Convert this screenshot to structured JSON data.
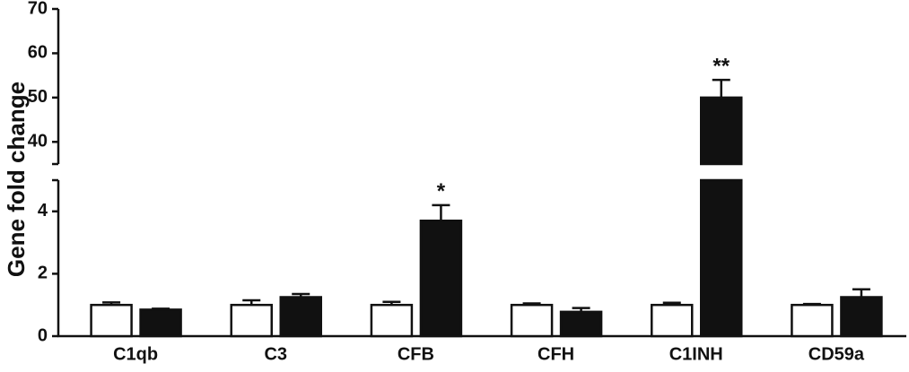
{
  "chart_data": {
    "type": "bar",
    "y_label": "Gene fold change",
    "categories": [
      "C1qb",
      "C3",
      "CFB",
      "CFH",
      "C1INH",
      "CD59a"
    ],
    "series": [
      {
        "color": "#ffffff",
        "values": [
          1.0,
          1.0,
          1.0,
          1.0,
          1.0,
          1.0
        ],
        "errors": [
          0.08,
          0.15,
          0.1,
          0.05,
          0.07,
          0.03
        ]
      },
      {
        "color": "#111111",
        "values": [
          0.85,
          1.25,
          3.7,
          0.78,
          50,
          1.25
        ],
        "errors": [
          0.03,
          0.1,
          0.5,
          0.12,
          4,
          0.25
        ]
      }
    ],
    "annotations": [
      {
        "category": 2,
        "text": "*"
      },
      {
        "category": 4,
        "text": "**"
      }
    ],
    "segments": [
      {
        "ylim": [
          0,
          5
        ],
        "yticks": [
          0,
          2,
          4
        ]
      },
      {
        "ylim": [
          35,
          70
        ],
        "yticks": [
          40,
          50,
          60,
          70
        ]
      }
    ]
  }
}
